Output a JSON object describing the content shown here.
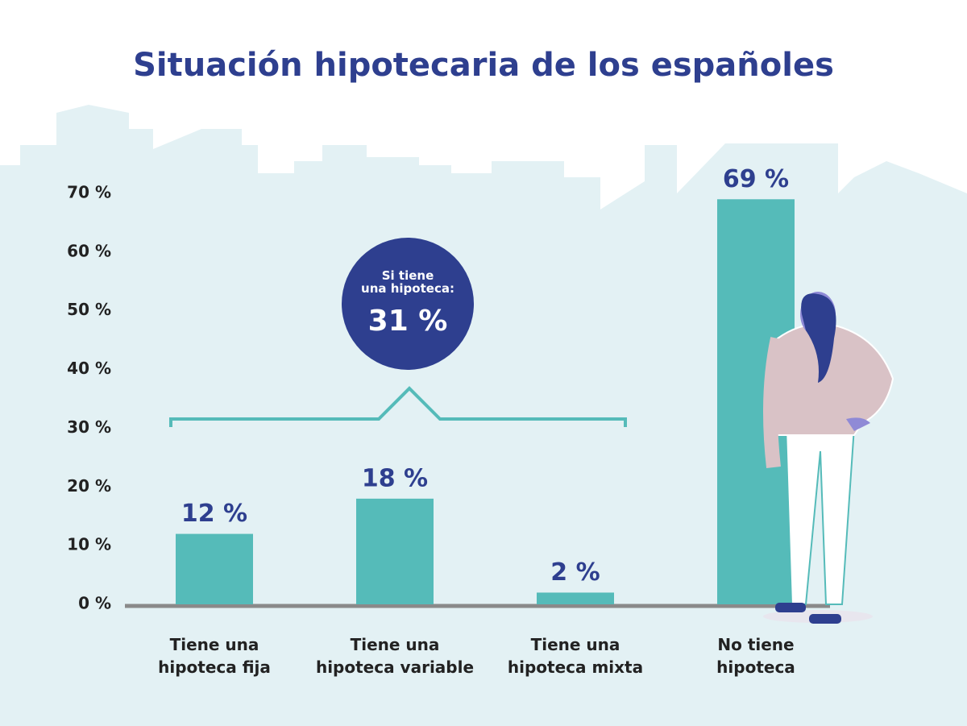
{
  "chart_data": {
    "type": "bar",
    "title": "Situación hipotecaria de los españoles",
    "categories": [
      "Tiene una\nhipoteca fija",
      "Tiene una\nhipoteca variable",
      "Tiene una\nhipoteca mixta",
      "No tiene\nhipoteca"
    ],
    "values": [
      12,
      18,
      2,
      69
    ],
    "value_labels": [
      "12 %",
      "18 %",
      "2 %",
      "69 %"
    ],
    "color": "#55bbb9",
    "ylim": [
      0,
      70
    ],
    "yticks": [
      {
        "value": 0,
        "label": "0 %"
      },
      {
        "value": 10,
        "label": "10 %"
      },
      {
        "value": 20,
        "label": "20 %"
      },
      {
        "value": 30,
        "label": "30 %"
      },
      {
        "value": 40,
        "label": "40 %"
      },
      {
        "value": 50,
        "label": "50 %"
      },
      {
        "value": 60,
        "label": "60 %"
      },
      {
        "value": 70,
        "label": "70 %"
      }
    ],
    "annotation": {
      "text": "Si tiene\nuna hipoteca:",
      "value_label": "31 %"
    }
  }
}
